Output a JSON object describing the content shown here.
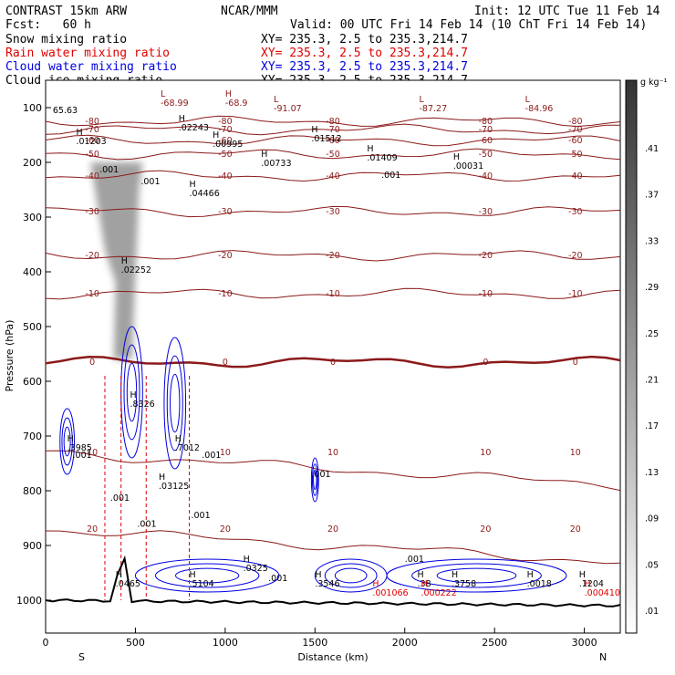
{
  "header": {
    "title": "CONTRAST 15km ARW",
    "org": "NCAR/MMM",
    "init": "Init: 12 UTC Tue 11 Feb 14",
    "fcst": "Fcst:   60 h",
    "valid": "Valid: 00 UTC Fri 14 Feb 14 (10 ChT Fri 14 Feb 14)"
  },
  "legend": [
    {
      "name": "Snow mixing ratio",
      "xy": "XY= 235.3,  2.5 to 235.3,214.7",
      "color": "#000000"
    },
    {
      "name": "Rain water mixing ratio",
      "xy": "XY= 235.3,  2.5 to 235.3,214.7",
      "color": "#e00000"
    },
    {
      "name": "Cloud water mixing ratio",
      "xy": "XY= 235.3,  2.5 to 235.3,214.7",
      "color": "#0000e0"
    },
    {
      "name": "Cloud ice mixing ratio",
      "xy": "XY= 235.3,  2.5 to 235.3,214.7",
      "color": "#000000"
    }
  ],
  "colorbar": {
    "unit": "g kg⁻¹",
    "ticks": [
      ".41",
      ".37",
      ".33",
      ".29",
      ".25",
      ".21",
      ".17",
      ".13",
      ".09",
      ".05",
      ".01"
    ]
  },
  "chart_data": {
    "type": "contour",
    "xlabel": "Distance (km)",
    "ylabel": "Pressure (hPa)",
    "xlim": [
      0,
      3200
    ],
    "ylim": [
      1060,
      50
    ],
    "x_ticks": [
      0,
      500,
      1000,
      1500,
      2000,
      2500,
      3000
    ],
    "y_ticks": [
      100,
      200,
      300,
      400,
      500,
      600,
      700,
      800,
      900,
      1000
    ],
    "x_end_labels": {
      "left": "S",
      "right": "N"
    },
    "temperature_contours": {
      "color": "#8b1a1a",
      "interval_c": 10,
      "levels": [
        {
          "label": "-80",
          "p": 125
        },
        {
          "label": "-70",
          "p": 140
        },
        {
          "label": "-60",
          "p": 160
        },
        {
          "label": "-50",
          "p": 185
        },
        {
          "label": "-40",
          "p": 225
        },
        {
          "label": "-30",
          "p": 290
        },
        {
          "label": "-20",
          "p": 370
        },
        {
          "label": "-10",
          "p": 440
        },
        {
          "label": "0",
          "p": 565
        },
        {
          "label": "10",
          "p": 730
        },
        {
          "label": "20",
          "p": 870
        }
      ]
    },
    "snow_max_column_km": 420,
    "highs_and_lows": [
      {
        "label": "H",
        "value": ".01203",
        "x": 170,
        "p": 150
      },
      {
        "label": "H",
        "value": ".02243",
        "x": 740,
        "p": 125
      },
      {
        "label": "H",
        "value": ".00995",
        "x": 930,
        "p": 155
      },
      {
        "label": "H",
        "value": ".01512",
        "x": 1480,
        "p": 145
      },
      {
        "label": "H",
        "value": ".00733",
        "x": 1200,
        "p": 190
      },
      {
        "label": "H",
        "value": ".01409",
        "x": 1790,
        "p": 180
      },
      {
        "label": "H",
        "value": ".00031",
        "x": 2270,
        "p": 195
      },
      {
        "label": "H",
        "value": ".04466",
        "x": 800,
        "p": 245
      },
      {
        "label": "H",
        "value": ".02252",
        "x": 420,
        "p": 385
      },
      {
        "label": "H",
        "value": ".8326",
        "x": 470,
        "p": 630
      },
      {
        "label": "H",
        "value": ".3985",
        "x": 120,
        "p": 710
      },
      {
        "label": "H",
        "value": ".7012",
        "x": 720,
        "p": 710
      },
      {
        "label": "H",
        "value": ".0325",
        "x": 1100,
        "p": 930
      },
      {
        "label": "H",
        "value": ".0465",
        "x": 390,
        "p": 958
      },
      {
        "label": "H",
        "value": ".5104",
        "x": 800,
        "p": 958
      },
      {
        "label": "H",
        "value": ".3546",
        "x": 1500,
        "p": 958
      },
      {
        "label": "H",
        "value": ".38",
        "x": 2070,
        "p": 958
      },
      {
        "label": "H",
        "value": ".3758",
        "x": 2260,
        "p": 958
      },
      {
        "label": "H",
        "value": ".0018",
        "x": 2680,
        "p": 958
      },
      {
        "label": "H",
        "value": ".1204",
        "x": 2970,
        "p": 958
      },
      {
        "label": "H",
        "value": ".001066",
        "x": 1820,
        "p": 975
      },
      {
        "label": "H",
        "value": ".000222",
        "x": 2090,
        "p": 975
      },
      {
        "label": "H",
        "value": ".000410",
        "x": 3000,
        "p": 975
      },
      {
        "label": "H",
        "value": ".03125",
        "x": 630,
        "p": 780
      },
      {
        "label": "L",
        "value": "-68.99",
        "x": 640,
        "p": 80
      },
      {
        "label": "H",
        "value": "-68.9",
        "x": 1000,
        "p": 80
      },
      {
        "label": "L",
        "value": "-91.07",
        "x": 1270,
        "p": 90
      },
      {
        "label": "L",
        "value": "-87.27",
        "x": 2080,
        "p": 90
      },
      {
        "label": "L",
        "value": "-84.96",
        "x": 2670,
        "p": 90
      }
    ],
    "other_labels": [
      {
        "text": "65.63",
        "x": 40,
        "p": 110
      },
      {
        "text": ".001",
        "x": 300,
        "p": 218
      },
      {
        "text": ".001",
        "x": 530,
        "p": 240
      },
      {
        "text": ".001",
        "x": 1870,
        "p": 228
      },
      {
        "text": ".001",
        "x": 150,
        "p": 740
      },
      {
        "text": ".001",
        "x": 870,
        "p": 740
      },
      {
        "text": ".001",
        "x": 1480,
        "p": 775
      },
      {
        "text": ".001",
        "x": 360,
        "p": 818
      },
      {
        "text": ".001",
        "x": 510,
        "p": 866
      },
      {
        "text": ".001",
        "x": 810,
        "p": 850
      },
      {
        "text": ".001",
        "x": 2000,
        "p": 930
      },
      {
        "text": ".001",
        "x": 1240,
        "p": 965
      }
    ]
  }
}
